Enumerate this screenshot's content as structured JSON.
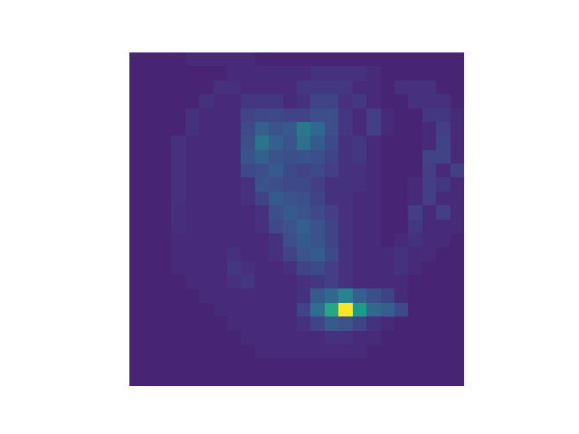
{
  "chart_data": {
    "type": "heatmap",
    "color": "viridis",
    "tick_labels": false,
    "grid": false,
    "xlim": [
      -0.5,
      23.5
    ],
    "ylim": [
      23.5,
      -0.5
    ],
    "zlim": [
      0,
      100
    ],
    "z": [
      [
        10,
        10,
        10,
        10,
        12,
        12,
        12,
        12,
        12,
        10,
        10,
        10,
        10,
        10,
        10,
        10,
        10,
        10,
        10,
        10,
        10,
        10,
        10,
        10
      ],
      [
        10,
        10,
        10,
        10,
        10,
        10,
        10,
        12,
        12,
        12,
        12,
        12,
        12,
        14,
        14,
        14,
        14,
        12,
        10,
        10,
        10,
        10,
        10,
        10
      ],
      [
        10,
        10,
        10,
        10,
        10,
        10,
        14,
        14,
        12,
        12,
        12,
        12,
        16,
        16,
        16,
        16,
        12,
        12,
        10,
        14,
        14,
        14,
        10,
        10
      ],
      [
        10,
        10,
        10,
        10,
        10,
        14,
        12,
        12,
        16,
        16,
        16,
        12,
        14,
        20,
        20,
        14,
        16,
        12,
        10,
        10,
        14,
        14,
        14,
        10
      ],
      [
        10,
        10,
        10,
        10,
        14,
        12,
        12,
        12,
        20,
        22,
        22,
        20,
        20,
        24,
        24,
        16,
        12,
        18,
        12,
        10,
        10,
        16,
        16,
        12
      ],
      [
        10,
        10,
        10,
        10,
        14,
        12,
        12,
        12,
        22,
        30,
        26,
        28,
        40,
        34,
        24,
        16,
        12,
        18,
        12,
        10,
        10,
        12,
        18,
        12
      ],
      [
        10,
        10,
        10,
        14,
        12,
        12,
        12,
        12,
        24,
        38,
        30,
        26,
        36,
        28,
        22,
        14,
        16,
        12,
        10,
        10,
        10,
        12,
        20,
        12
      ],
      [
        10,
        10,
        10,
        14,
        12,
        12,
        12,
        12,
        26,
        30,
        26,
        24,
        26,
        24,
        20,
        14,
        16,
        12,
        10,
        10,
        10,
        20,
        20,
        12
      ],
      [
        10,
        10,
        10,
        14,
        12,
        12,
        12,
        12,
        22,
        24,
        28,
        22,
        20,
        22,
        18,
        14,
        14,
        12,
        10,
        10,
        10,
        18,
        12,
        18
      ],
      [
        10,
        10,
        10,
        14,
        12,
        12,
        12,
        12,
        14,
        26,
        24,
        22,
        22,
        18,
        14,
        14,
        14,
        12,
        10,
        10,
        12,
        18,
        16,
        12
      ],
      [
        10,
        10,
        10,
        14,
        12,
        12,
        12,
        12,
        14,
        20,
        28,
        26,
        24,
        20,
        14,
        14,
        12,
        12,
        10,
        10,
        12,
        18,
        12,
        12
      ],
      [
        10,
        10,
        10,
        13,
        12,
        12,
        12,
        12,
        12,
        14,
        24,
        28,
        26,
        22,
        18,
        14,
        12,
        12,
        10,
        10,
        18,
        12,
        18,
        12
      ],
      [
        10,
        10,
        10,
        13,
        12,
        12,
        12,
        12,
        12,
        14,
        22,
        26,
        30,
        26,
        20,
        14,
        12,
        12,
        10,
        10,
        16,
        12,
        12,
        12
      ],
      [
        10,
        10,
        10,
        12,
        12,
        12,
        12,
        12,
        12,
        12,
        14,
        24,
        28,
        26,
        20,
        14,
        12,
        12,
        10,
        12,
        14,
        12,
        12,
        10
      ],
      [
        10,
        10,
        10,
        12,
        12,
        12,
        12,
        14,
        12,
        12,
        14,
        20,
        26,
        28,
        22,
        14,
        12,
        12,
        12,
        14,
        12,
        12,
        10,
        10
      ],
      [
        10,
        10,
        10,
        12,
        12,
        12,
        12,
        16,
        14,
        12,
        12,
        14,
        20,
        22,
        18,
        14,
        12,
        12,
        12,
        14,
        12,
        10,
        10,
        10
      ],
      [
        10,
        10,
        10,
        10,
        12,
        12,
        12,
        14,
        16,
        12,
        12,
        12,
        14,
        16,
        18,
        14,
        12,
        12,
        12,
        12,
        10,
        10,
        10,
        10
      ],
      [
        10,
        10,
        10,
        10,
        10,
        12,
        12,
        12,
        12,
        12,
        12,
        12,
        14,
        28,
        34,
        45,
        30,
        24,
        20,
        12,
        10,
        10,
        10,
        10
      ],
      [
        10,
        10,
        10,
        10,
        10,
        10,
        12,
        12,
        12,
        12,
        12,
        12,
        20,
        36,
        60,
        100,
        55,
        34,
        30,
        22,
        10,
        10,
        10,
        10
      ],
      [
        10,
        10,
        10,
        10,
        10,
        10,
        10,
        12,
        12,
        12,
        12,
        12,
        14,
        20,
        28,
        26,
        20,
        14,
        12,
        10,
        10,
        10,
        10,
        10
      ],
      [
        10,
        10,
        10,
        10,
        10,
        10,
        10,
        10,
        12,
        12,
        12,
        12,
        12,
        12,
        14,
        14,
        12,
        12,
        10,
        10,
        10,
        10,
        10,
        10
      ],
      [
        10,
        10,
        10,
        10,
        10,
        10,
        10,
        10,
        10,
        12,
        12,
        12,
        12,
        12,
        12,
        12,
        12,
        10,
        10,
        10,
        10,
        10,
        10,
        10
      ],
      [
        10,
        10,
        10,
        10,
        10,
        10,
        10,
        10,
        10,
        10,
        10,
        10,
        10,
        10,
        10,
        10,
        10,
        10,
        10,
        10,
        10,
        10,
        10,
        10
      ],
      [
        10,
        10,
        10,
        10,
        10,
        10,
        10,
        10,
        10,
        10,
        10,
        10,
        10,
        10,
        10,
        10,
        10,
        10,
        10,
        10,
        10,
        10,
        10,
        10
      ]
    ]
  }
}
